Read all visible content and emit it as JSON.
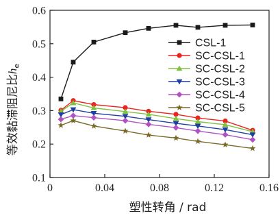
{
  "chart_data": {
    "type": "line",
    "title": "",
    "xlabel": "塑性转角 / rad",
    "ylabel_main": "等效黏滞阻尼比",
    "ylabel_symbol": "h",
    "ylabel_subscript": "e",
    "xlim": [
      0,
      0.16
    ],
    "ylim": [
      0.1,
      0.6
    ],
    "xticks": [
      0,
      0.04,
      0.08,
      0.12,
      0.16
    ],
    "xtick_labels": [
      "0",
      "0.04",
      "0.08",
      "0.12",
      "0.16"
    ],
    "yticks": [
      0.1,
      0.2,
      0.3,
      0.4,
      0.5,
      0.6
    ],
    "ytick_labels": [
      "0.1",
      "0.2",
      "0.3",
      "0.4",
      "0.5",
      "0.6"
    ],
    "grid": false,
    "legend_position": "top-right",
    "series": [
      {
        "name": "CSL-1",
        "color": "#1a1a1a",
        "marker": "square",
        "x": [
          0.008,
          0.017,
          0.032,
          0.055,
          0.072,
          0.092,
          0.108,
          0.128,
          0.148
        ],
        "y": [
          0.335,
          0.445,
          0.505,
          0.533,
          0.546,
          0.555,
          0.549,
          0.555,
          0.556
        ]
      },
      {
        "name": "SC-CSL-1",
        "color": "#e8251f",
        "marker": "circle",
        "x": [
          0.008,
          0.017,
          0.032,
          0.055,
          0.072,
          0.092,
          0.108,
          0.128,
          0.148
        ],
        "y": [
          0.301,
          0.33,
          0.318,
          0.309,
          0.298,
          0.289,
          0.278,
          0.269,
          0.241
        ]
      },
      {
        "name": "SC-CSL-2",
        "color": "#7ec242",
        "marker": "triangle-up",
        "x": [
          0.008,
          0.017,
          0.032,
          0.055,
          0.072,
          0.092,
          0.108,
          0.128,
          0.148
        ],
        "y": [
          0.298,
          0.323,
          0.308,
          0.297,
          0.289,
          0.276,
          0.267,
          0.258,
          0.237
        ]
      },
      {
        "name": "SC-CSL-3",
        "color": "#1f3fa0",
        "marker": "triangle-down",
        "x": [
          0.008,
          0.017,
          0.032,
          0.055,
          0.072,
          0.092,
          0.108,
          0.128,
          0.148
        ],
        "y": [
          0.288,
          0.303,
          0.292,
          0.283,
          0.273,
          0.262,
          0.254,
          0.243,
          0.228
        ]
      },
      {
        "name": "SC-CSL-4",
        "color": "#b152c2",
        "marker": "diamond",
        "x": [
          0.008,
          0.017,
          0.032,
          0.055,
          0.072,
          0.092,
          0.108,
          0.128,
          0.148
        ],
        "y": [
          0.274,
          0.285,
          0.279,
          0.27,
          0.259,
          0.249,
          0.239,
          0.228,
          0.213
        ]
      },
      {
        "name": "SC-CSL-5",
        "color": "#7a6a2a",
        "marker": "star",
        "x": [
          0.008,
          0.017,
          0.032,
          0.055,
          0.072,
          0.092,
          0.108,
          0.128,
          0.148
        ],
        "y": [
          0.256,
          0.27,
          0.254,
          0.239,
          0.227,
          0.218,
          0.208,
          0.198,
          0.187
        ]
      }
    ]
  }
}
